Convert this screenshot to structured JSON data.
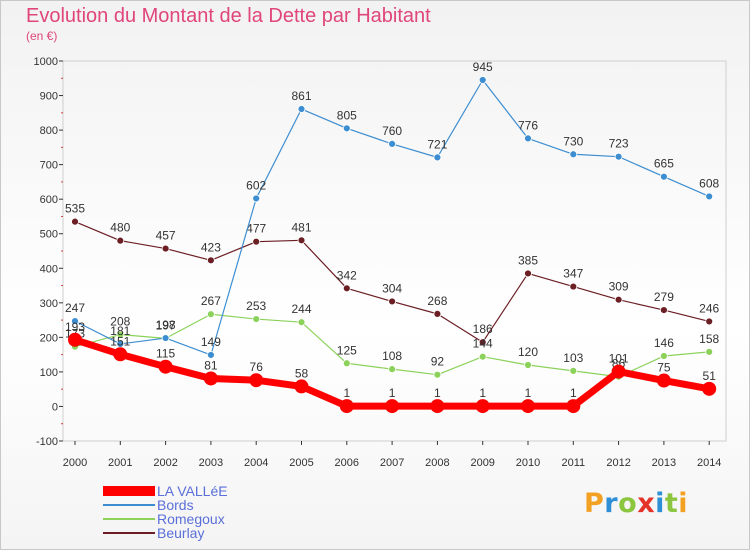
{
  "title": "Evolution du Montant de la Dette par Habitant",
  "subtitle": "(en €)",
  "brand": {
    "letters": [
      {
        "ch": "P",
        "color": "#f2a122"
      },
      {
        "ch": "r",
        "color": "#2f8fd6"
      },
      {
        "ch": "o",
        "color": "#8cc63f"
      },
      {
        "ch": "x",
        "color": "#e6332a"
      },
      {
        "ch": "i",
        "color": "#2f8fd6"
      },
      {
        "ch": "t",
        "color": "#8cc63f"
      },
      {
        "ch": "i",
        "color": "#f2a122"
      }
    ]
  },
  "chart_data": {
    "type": "line",
    "title": "Evolution du Montant de la Dette par Habitant",
    "subtitle": "(en €)",
    "x": [
      "2000",
      "2001",
      "2002",
      "2003",
      "2004",
      "2005",
      "2006",
      "2007",
      "2008",
      "2009",
      "2010",
      "2011",
      "2012",
      "2013",
      "2014"
    ],
    "ylim": [
      -100,
      1000
    ],
    "yticks": [
      -100,
      0,
      100,
      200,
      300,
      400,
      500,
      600,
      700,
      800,
      900,
      1000
    ],
    "grid": false,
    "legend_position": "bottom-left",
    "series": [
      {
        "name": "LA VALLéE",
        "color": "#ff0000",
        "values": [
          193,
          151,
          115,
          81,
          76,
          58,
          1,
          1,
          1,
          1,
          1,
          1,
          101,
          75,
          51
        ]
      },
      {
        "name": "Bords",
        "color": "#3d8ed1",
        "values": [
          247,
          181,
          198,
          149,
          602,
          861,
          805,
          760,
          721,
          945,
          776,
          730,
          723,
          665,
          608
        ]
      },
      {
        "name": "Romegoux",
        "color": "#8cd25a",
        "values": [
          173,
          208,
          197,
          267,
          253,
          244,
          125,
          108,
          92,
          144,
          120,
          103,
          86,
          146,
          158
        ]
      },
      {
        "name": "Beurlay",
        "color": "#6b1e24",
        "values": [
          535,
          480,
          457,
          423,
          477,
          481,
          342,
          304,
          268,
          186,
          385,
          347,
          309,
          279,
          246
        ]
      }
    ]
  }
}
